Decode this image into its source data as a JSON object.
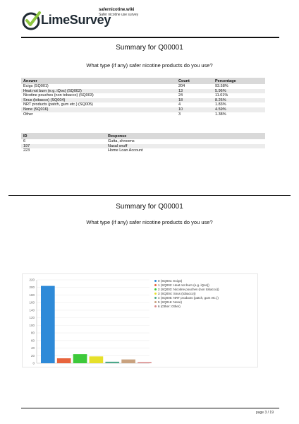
{
  "header": {
    "logo_text": "LimeSurvey",
    "site_name": "safernicotine.wiki",
    "survey_name": "Safer nicotine use survey"
  },
  "section1": {
    "title": "Summary for Q00001",
    "question": "What type (if any) safer nicotine products do you use?"
  },
  "results": {
    "headers": {
      "answer": "Answer",
      "count": "Count",
      "percentage": "Percentage"
    },
    "rows": [
      {
        "answer": "Ecigs (SQ001)",
        "count": "204",
        "percentage": "93.58%"
      },
      {
        "answer": "Heat not burn (e.g. iQos) (SQ002)",
        "count": "13",
        "percentage": "5.96%"
      },
      {
        "answer": "Nicotine pouches (non tobacco) (SQ003)",
        "count": "24",
        "percentage": "11.01%"
      },
      {
        "answer": "Snus (tobacco) (SQ004)",
        "count": "18",
        "percentage": "8.26%"
      },
      {
        "answer": "NRT products (patch, gum etc.) (SQ005)",
        "count": "4",
        "percentage": "1.83%"
      },
      {
        "answer": "None (SQ016)",
        "count": "10",
        "percentage": "4.59%"
      },
      {
        "answer": "Other",
        "count": "3",
        "percentage": "1.38%"
      }
    ]
  },
  "responses": {
    "headers": {
      "id": "ID",
      "response": "Response"
    },
    "rows": [
      {
        "id": "6",
        "response": "Gutta, shrooms"
      },
      {
        "id": "197",
        "response": "Nasal snuff"
      },
      {
        "id": "223",
        "response": "Home Loan Account"
      }
    ]
  },
  "section2": {
    "title": "Summary for Q00001",
    "question": "What type (if any) safer nicotine products do you use?"
  },
  "chart_data": {
    "type": "bar",
    "title": "",
    "xlabel": "",
    "ylabel": "",
    "ylim": [
      0,
      220
    ],
    "yticks": [
      0,
      20,
      40,
      60,
      80,
      100,
      120,
      140,
      160,
      180,
      200,
      220
    ],
    "grid": true,
    "legend_position": "top-right",
    "series": [
      {
        "name": "0 (SQ001: Ecigs)",
        "value": 204,
        "color": "#2e8ad8"
      },
      {
        "name": "1 (SQ002: Heat not burn (e.g. iQos))",
        "value": 13,
        "color": "#e8643c"
      },
      {
        "name": "2 (SQ003: Nicotine pouches (non tobacco))",
        "value": 24,
        "color": "#3dc93a"
      },
      {
        "name": "3 (SQ004: Snus (tobacco))",
        "value": 18,
        "color": "#e6e02a"
      },
      {
        "name": "4 (SQ005: NRT products (patch, gum etc.))",
        "value": 4,
        "color": "#4ca88a"
      },
      {
        "name": "5 (SQ016: None)",
        "value": 10,
        "color": "#c9a27f"
      },
      {
        "name": "6 (Other: Other)",
        "value": 3,
        "color": "#d98a8a"
      }
    ]
  },
  "footer": {
    "page_number": "page 3 / 19"
  }
}
